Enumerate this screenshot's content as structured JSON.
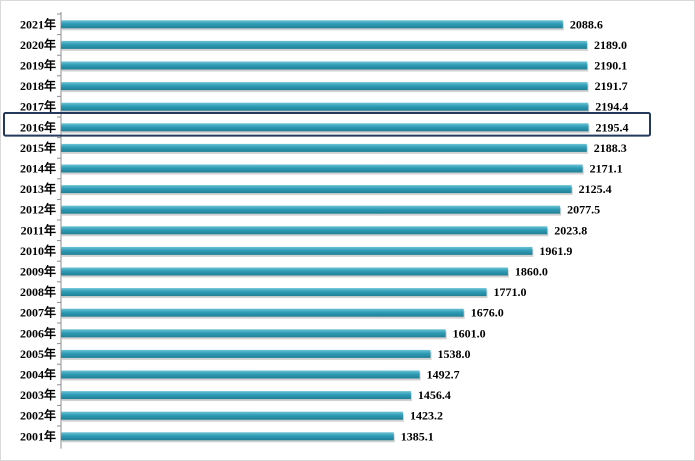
{
  "chart_data": {
    "type": "bar",
    "orientation": "horizontal",
    "title": "",
    "xlabel": "",
    "ylabel": "",
    "xlim": [
      0,
      2400
    ],
    "grid": false,
    "legend": "none",
    "categories": [
      "2021年",
      "2020年",
      "2019年",
      "2018年",
      "2017年",
      "2016年",
      "2015年",
      "2014年",
      "2013年",
      "2012年",
      "2011年",
      "2010年",
      "2009年",
      "2008年",
      "2007年",
      "2006年",
      "2005年",
      "2004年",
      "2003年",
      "2002年",
      "2001年"
    ],
    "values": [
      2088.6,
      2189.0,
      2190.1,
      2191.7,
      2194.4,
      2195.4,
      2188.3,
      2171.1,
      2125.4,
      2077.5,
      2023.8,
      1961.9,
      1860.0,
      1771.0,
      1676.0,
      1601.0,
      1538.0,
      1492.7,
      1456.4,
      1423.2,
      1385.1
    ],
    "value_labels": [
      "2088.6",
      "2189.0",
      "2190.1",
      "2191.7",
      "2194.4",
      "2195.4",
      "2188.3",
      "2171.1",
      "2125.4",
      "2077.5",
      "2023.8",
      "1961.9",
      "1860.0",
      "1771.0",
      "1676.0",
      "1601.0",
      "1538.0",
      "1492.7",
      "1456.4",
      "1423.2",
      "1385.1"
    ],
    "highlighted_category": "2016年",
    "bar_color": "#2f9cb5",
    "highlight_color": "#233a5e"
  }
}
